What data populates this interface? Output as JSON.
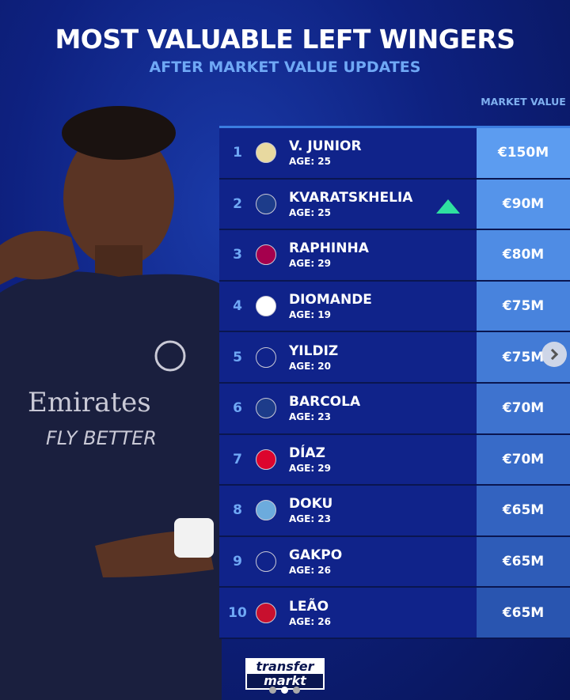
{
  "header": {
    "title": "MOST VALUABLE LEFT WINGERS",
    "subtitle": "AFTER MARKET VALUE UPDATES",
    "column": "MARKET VALUE"
  },
  "rows": [
    {
      "rank": "1",
      "name": "V. JUNIOR",
      "age": "AGE: 25",
      "value": "€150M",
      "club": "real-madrid-crest",
      "color": "#5c9cf0"
    },
    {
      "rank": "2",
      "name": "KVARATSKHELIA",
      "age": "AGE: 25",
      "value": "€90M",
      "club": "psg-crest",
      "color": "#5594ea",
      "trend": "up"
    },
    {
      "rank": "3",
      "name": "RAPHINHA",
      "age": "AGE: 29",
      "value": "€80M",
      "club": "barcelona-crest",
      "color": "#4f8ce4"
    },
    {
      "rank": "4",
      "name": "DIOMANDE",
      "age": "AGE: 19",
      "value": "€75M",
      "club": "rb-leipzig-crest",
      "color": "#4883dd"
    },
    {
      "rank": "5",
      "name": "YILDIZ",
      "age": "AGE: 20",
      "value": "€75M",
      "club": "juventus-crest",
      "color": "#437bd6"
    },
    {
      "rank": "6",
      "name": "BARCOLA",
      "age": "AGE: 23",
      "value": "€70M",
      "club": "psg-crest",
      "color": "#3e73cf"
    },
    {
      "rank": "7",
      "name": "DÍAZ",
      "age": "AGE: 29",
      "value": "€70M",
      "club": "bayern-crest",
      "color": "#386bc8"
    },
    {
      "rank": "8",
      "name": "DOKU",
      "age": "AGE: 23",
      "value": "€65M",
      "club": "man-city-crest",
      "color": "#3363c0"
    },
    {
      "rank": "9",
      "name": "GAKPO",
      "age": "AGE: 26",
      "value": "€65M",
      "club": "liverpool-crest",
      "color": "#2e5cb8"
    },
    {
      "rank": "10",
      "name": "LEÃO",
      "age": "AGE: 26",
      "value": "€65M",
      "club": "ac-milan-crest",
      "color": "#2955b0"
    }
  ],
  "logo": {
    "line1": "transfer",
    "line2": "markt"
  },
  "carousel": {
    "pages": 3,
    "current": 2
  }
}
